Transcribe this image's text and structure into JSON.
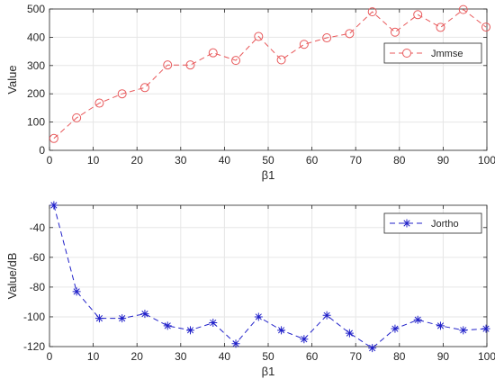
{
  "chart_data": [
    {
      "type": "line",
      "xlabel": "β1",
      "ylabel": "Value",
      "xlim": [
        0,
        100
      ],
      "ylim": [
        0,
        500
      ],
      "xticks": [
        "0",
        "10",
        "20",
        "30",
        "40",
        "50",
        "60",
        "70",
        "80",
        "90",
        "100"
      ],
      "yticks": [
        "0",
        "100",
        "200",
        "300",
        "400",
        "500"
      ],
      "grid": true,
      "legend": "top-right",
      "series": [
        {
          "name": "Jmmse",
          "color": "#e8595b",
          "marker": "circle",
          "line_style": "dashed",
          "x": [
            1,
            6.2,
            11.4,
            16.6,
            21.8,
            27,
            32.2,
            37.4,
            42.6,
            47.8,
            53,
            58.2,
            63.4,
            68.6,
            73.8,
            79,
            84.2,
            89.4,
            94.6,
            99.8
          ],
          "y": [
            42,
            115,
            167,
            200,
            222,
            302,
            302,
            345,
            318,
            403,
            320,
            375,
            398,
            413,
            490,
            418,
            480,
            435,
            498,
            436
          ]
        }
      ]
    },
    {
      "type": "line",
      "xlabel": "β1",
      "ylabel": "Value/dB",
      "xlim": [
        0,
        100
      ],
      "ylim": [
        -120,
        -25
      ],
      "xticks": [
        "0",
        "10",
        "20",
        "30",
        "40",
        "50",
        "60",
        "70",
        "80",
        "90",
        "100"
      ],
      "yticks": [
        "-40",
        "-60",
        "-80",
        "-100",
        "-120"
      ],
      "grid": true,
      "legend": "top-right",
      "series": [
        {
          "name": "Jortho",
          "color": "#2121c9",
          "marker": "asterisk",
          "line_style": "dashed",
          "x": [
            1,
            6.2,
            11.4,
            16.6,
            21.8,
            27,
            32.2,
            37.4,
            42.6,
            47.8,
            53,
            58.2,
            63.4,
            68.6,
            73.8,
            79,
            84.2,
            89.4,
            94.6,
            99.8
          ],
          "y": [
            -25,
            -83,
            -101,
            -101,
            -98,
            -106,
            -109,
            -104,
            -118,
            -100,
            -109,
            -115,
            -99,
            -111,
            -121,
            -108,
            -102,
            -106,
            -109,
            -108
          ]
        }
      ]
    }
  ]
}
